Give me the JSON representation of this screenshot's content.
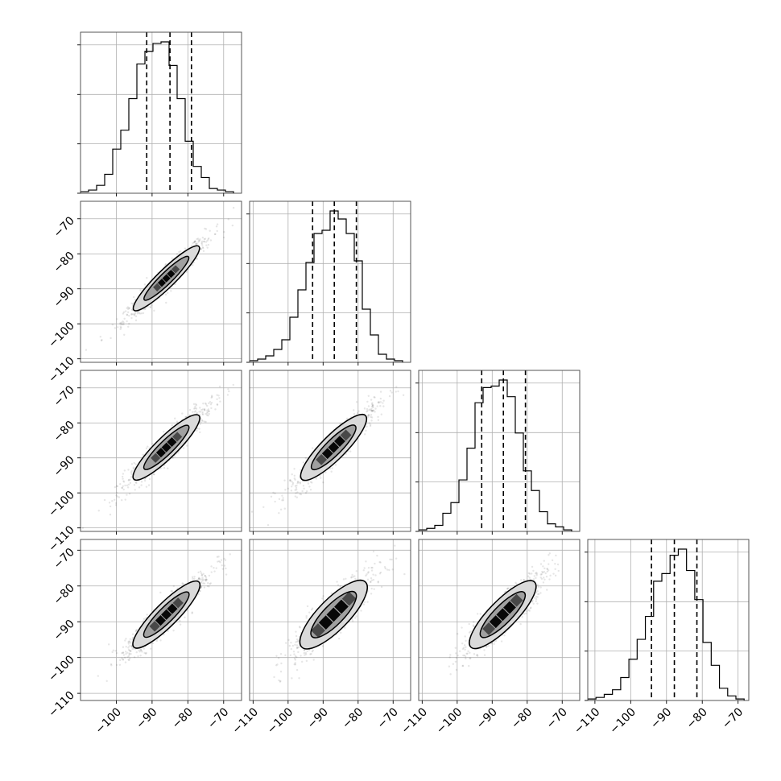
{
  "chart_data": {
    "type": "corner",
    "title": "",
    "parameters": 4,
    "grid": true,
    "labels": [
      "",
      "",
      "",
      ""
    ],
    "ranges": [
      [
        -110,
        -65
      ],
      [
        -111,
        -65
      ],
      [
        -111,
        -65
      ],
      [
        -112,
        -67
      ]
    ],
    "x_ticks": [
      [
        -100,
        -90,
        -80,
        -70
      ],
      [
        -110,
        -100,
        -90,
        -80,
        -70
      ],
      [
        -110,
        -100,
        -90,
        -80,
        -70
      ],
      [
        -110,
        -100,
        -90,
        -80,
        -70
      ]
    ],
    "y_ticks": [
      -110,
      -100,
      -90,
      -80,
      -70
    ],
    "tick_label_text": {
      "-110": "−110",
      "-100": "−100",
      "-90": "−90",
      "-80": "−80",
      "-70": "−70"
    },
    "quantiles": [
      [
        -91.5,
        -85.0,
        -79.0
      ],
      [
        -93.0,
        -86.8,
        -80.5
      ],
      [
        -93.0,
        -86.8,
        -80.5
      ],
      [
        -94.2,
        -87.8,
        -81.5
      ]
    ],
    "histograms": [
      {
        "bin_start": -110,
        "bin_width": 2.25,
        "counts": [
          1,
          2,
          5,
          12,
          28,
          40,
          60,
          82,
          90,
          95,
          96,
          81,
          60,
          33,
          17,
          10,
          3,
          2,
          1
        ]
      },
      {
        "bin_start": -111,
        "bin_width": 2.3,
        "counts": [
          1,
          2,
          4,
          8,
          14,
          28,
          45,
          62,
          80,
          82,
          94,
          89,
          80,
          63,
          33,
          17,
          5,
          2,
          1
        ]
      },
      {
        "bin_start": -111,
        "bin_width": 2.3,
        "counts": [
          1,
          2,
          4,
          12,
          19,
          34,
          55,
          85,
          95,
          96,
          100,
          89,
          65,
          40,
          27,
          13,
          5,
          3,
          1
        ]
      },
      {
        "bin_start": -112,
        "bin_width": 2.3,
        "counts": [
          1,
          2,
          4,
          7,
          15,
          27,
          40,
          55,
          78,
          83,
          95,
          99,
          85,
          66,
          38,
          23,
          8,
          3,
          1
        ]
      }
    ],
    "joint_panels": [
      {
        "row": 1,
        "col": 0,
        "center": [
          -86.0,
          -87.0
        ],
        "slope": 1.0,
        "sd_major": 8.3,
        "sd_minor": 1.1
      },
      {
        "row": 2,
        "col": 0,
        "center": [
          -86.0,
          -87.0
        ],
        "slope": 1.0,
        "sd_major": 8.3,
        "sd_minor": 1.3
      },
      {
        "row": 2,
        "col": 1,
        "center": [
          -87.0,
          -87.0
        ],
        "slope": 1.0,
        "sd_major": 8.3,
        "sd_minor": 1.5
      },
      {
        "row": 3,
        "col": 0,
        "center": [
          -86.0,
          -88.0
        ],
        "slope": 1.0,
        "sd_major": 8.3,
        "sd_minor": 1.4
      },
      {
        "row": 3,
        "col": 1,
        "center": [
          -87.0,
          -88.0
        ],
        "slope": 1.0,
        "sd_major": 8.3,
        "sd_minor": 1.9
      },
      {
        "row": 3,
        "col": 2,
        "center": [
          -87.0,
          -88.0
        ],
        "slope": 1.0,
        "sd_major": 8.3,
        "sd_minor": 1.7
      }
    ],
    "colors": {
      "line": "#000000",
      "frame": "#444444",
      "grid": "#b0b0b0",
      "fill_outer": "#dadada",
      "fill_mid": "#a0a0a0",
      "fill_core": "#000000",
      "scatter": "#333333"
    }
  }
}
